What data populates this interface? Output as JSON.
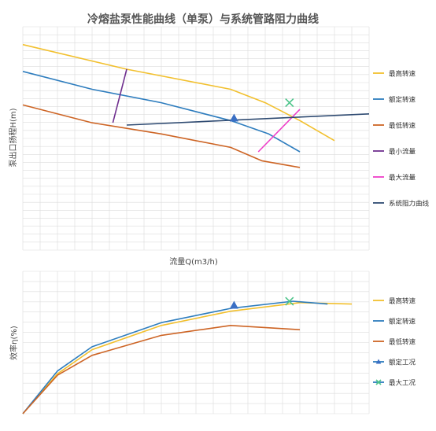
{
  "chart_data": [
    {
      "type": "line",
      "title": "冷熔盐泵性能曲线（单泵）与系统管路阻力曲线",
      "xlabel": "流量Q(m3/h)",
      "ylabel": "泵出口扬程H(m)",
      "xlim": [
        0,
        100
      ],
      "ylim": [
        0,
        100
      ],
      "grid": true,
      "legend_position": "right",
      "series": [
        {
          "name": "最高转速",
          "color": "#F2C02E",
          "x": [
            0,
            30,
            60,
            70,
            80,
            90
          ],
          "y": [
            92,
            81,
            72,
            66,
            58,
            49
          ]
        },
        {
          "name": "额定转速",
          "color": "#2E7DBE",
          "x": [
            0,
            20,
            40,
            60,
            71,
            80
          ],
          "y": [
            80,
            72,
            66,
            58,
            52,
            44
          ]
        },
        {
          "name": "最低转速",
          "color": "#CD6424",
          "x": [
            0,
            20,
            40,
            60,
            69,
            80
          ],
          "y": [
            65,
            57,
            52,
            46,
            40,
            37
          ]
        },
        {
          "name": "最小流量",
          "color": "#70308F",
          "x": [
            26,
            30
          ],
          "y": [
            57,
            81
          ]
        },
        {
          "name": "最大流量",
          "color": "#EE3EC8",
          "x": [
            68,
            80
          ],
          "y": [
            44,
            63
          ]
        },
        {
          "name": "系统阻力曲线",
          "color": "#2F4B72",
          "x": [
            30,
            100
          ],
          "y": [
            56,
            61
          ]
        }
      ],
      "markers": [
        {
          "series": "额定转速",
          "shape": "triangle",
          "color": "#3A6FC4",
          "x": 61,
          "y": 59
        },
        {
          "series": "最高转速",
          "shape": "x",
          "color": "#4DC48A",
          "x": 77,
          "y": 66
        }
      ]
    },
    {
      "type": "line",
      "title": "",
      "xlabel": "",
      "ylabel": "效率η(%)",
      "xlim": [
        0,
        100
      ],
      "ylim": [
        0,
        100
      ],
      "grid": true,
      "legend_position": "right",
      "series": [
        {
          "name": "最高转速",
          "color": "#F2C02E",
          "x": [
            0,
            10,
            20,
            40,
            60,
            80,
            95
          ],
          "y": [
            0,
            28,
            45,
            62,
            72,
            78,
            77
          ]
        },
        {
          "name": "额定转速",
          "color": "#2E7DBE",
          "x": [
            0,
            10,
            20,
            40,
            60,
            78,
            88
          ],
          "y": [
            0,
            30,
            47,
            64,
            74,
            79,
            77
          ]
        },
        {
          "name": "最低转速",
          "color": "#CD6424",
          "x": [
            0,
            10,
            20,
            40,
            60,
            80
          ],
          "y": [
            0,
            27,
            41,
            55,
            62,
            59
          ]
        },
        {
          "name": "额定工况",
          "color": "#2E7DBE",
          "marker": "triangle",
          "marker_color": "#3A6FC4",
          "x": [
            61
          ],
          "y": [
            76
          ]
        },
        {
          "name": "最大工况",
          "color": "#2E7DBE",
          "marker": "x",
          "marker_color": "#4DC48A",
          "x": [
            77
          ],
          "y": [
            79
          ]
        }
      ]
    }
  ]
}
